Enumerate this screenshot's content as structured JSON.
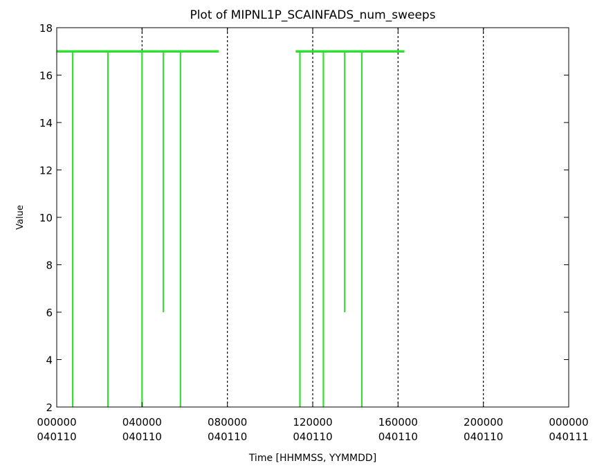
{
  "chart_data": {
    "type": "line",
    "title": "Plot of MIPNL1P_SCAINFADS_num_sweeps",
    "xlabel": "Time [HHMMSS, YYMMDD]",
    "ylabel": "Value",
    "ylim": [
      2,
      18
    ],
    "y_ticks": [
      2,
      4,
      6,
      8,
      10,
      12,
      14,
      16,
      18
    ],
    "x_ticks": [
      {
        "hours": 0,
        "time": "000000",
        "date": "040110"
      },
      {
        "hours": 4,
        "time": "040000",
        "date": "040110"
      },
      {
        "hours": 8,
        "time": "080000",
        "date": "040110"
      },
      {
        "hours": 12,
        "time": "120000",
        "date": "040110"
      },
      {
        "hours": 16,
        "time": "160000",
        "date": "040110"
      },
      {
        "hours": 20,
        "time": "200000",
        "date": "040110"
      },
      {
        "hours": 24,
        "time": "000000",
        "date": "040111"
      }
    ],
    "gridlines_x_hours": [
      4,
      8,
      12,
      16,
      20
    ],
    "grid_style": "dotted vertical lines",
    "series": [
      {
        "color": "#33dd33",
        "base_value": 17,
        "segments": [
          [
            0.0,
            7.6
          ],
          [
            11.2,
            16.3
          ]
        ],
        "dips": [
          {
            "x_hours": 0.75,
            "min": 2
          },
          {
            "x_hours": 2.4,
            "min": 2
          },
          {
            "x_hours": 4.0,
            "min": 2
          },
          {
            "x_hours": 5.0,
            "min": 6
          },
          {
            "x_hours": 5.8,
            "min": 2
          },
          {
            "x_hours": 11.4,
            "min": 2
          },
          {
            "x_hours": 12.5,
            "min": 2
          },
          {
            "x_hours": 13.5,
            "min": 6
          },
          {
            "x_hours": 14.3,
            "min": 2
          }
        ]
      }
    ]
  }
}
